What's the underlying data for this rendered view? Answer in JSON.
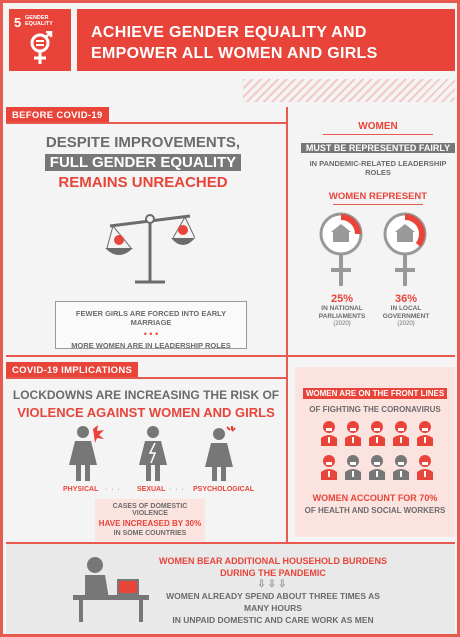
{
  "header": {
    "goal_number": "5",
    "goal_label_line1": "GENDER",
    "goal_label_line2": "EQUALITY",
    "title_line1": "ACHIEVE GENDER EQUALITY AND",
    "title_line2": "EMPOWER ALL WOMEN AND GIRLS"
  },
  "before": {
    "label": "BEFORE COVID-19",
    "headline1": "DESPITE IMPROVEMENTS,",
    "headline2": "FULL GENDER EQUALITY",
    "headline3": "REMAINS UNREACHED",
    "fact1": "FEWER GIRLS ARE FORCED INTO EARLY MARRIAGE",
    "fact2": "MORE WOMEN ARE IN LEADERSHIP ROLES"
  },
  "women": {
    "title": "WOMEN",
    "subtitle": "MUST BE REPRESENTED FAIRLY",
    "subtitle2": "IN PANDEMIC-RELATED LEADERSHIP ROLES",
    "represent": "WOMEN REPRESENT",
    "stat1_value": "25%",
    "stat1_line1": "IN NATIONAL",
    "stat1_line2": "PARLIAMENTS",
    "stat1_year": "(2020)",
    "stat1_fraction": 0.25,
    "stat2_value": "36%",
    "stat2_line1": "IN LOCAL",
    "stat2_line2": "GOVERNMENT",
    "stat2_year": "(2020)",
    "stat2_fraction": 0.36
  },
  "covid": {
    "label": "COVID-19 IMPLICATIONS",
    "headline1": "LOCKDOWNS ARE INCREASING THE RISK OF",
    "headline2": "VIOLENCE AGAINST WOMEN AND GIRLS",
    "type1": "PHYSICAL",
    "type2": "SEXUAL",
    "type3": "PSYCHOLOGICAL",
    "dv_line1": "CASES OF DOMESTIC VIOLENCE",
    "dv_line2": "HAVE INCREASED BY 30%",
    "dv_line3": "IN SOME COUNTRIES"
  },
  "frontline": {
    "line1": "WOMEN ARE ON THE FRONT LINES",
    "line2": "OF FIGHTING THE CORONAVIRUS",
    "stat1": "WOMEN ACCOUNT FOR 70%",
    "stat2": "OF HEALTH AND SOCIAL WORKERS",
    "women_fraction": 0.7
  },
  "household": {
    "line1": "WOMEN BEAR ADDITIONAL HOUSEHOLD BURDENS",
    "line2": "DURING THE PANDEMIC",
    "line3": "WOMEN ALREADY SPEND ABOUT THREE TIMES AS MANY HOURS",
    "line4": "IN UNPAID DOMESTIC AND CARE WORK AS MEN"
  },
  "colors": {
    "accent": "#e8443a",
    "gray": "#777777",
    "pink": "#fbe3e0"
  }
}
